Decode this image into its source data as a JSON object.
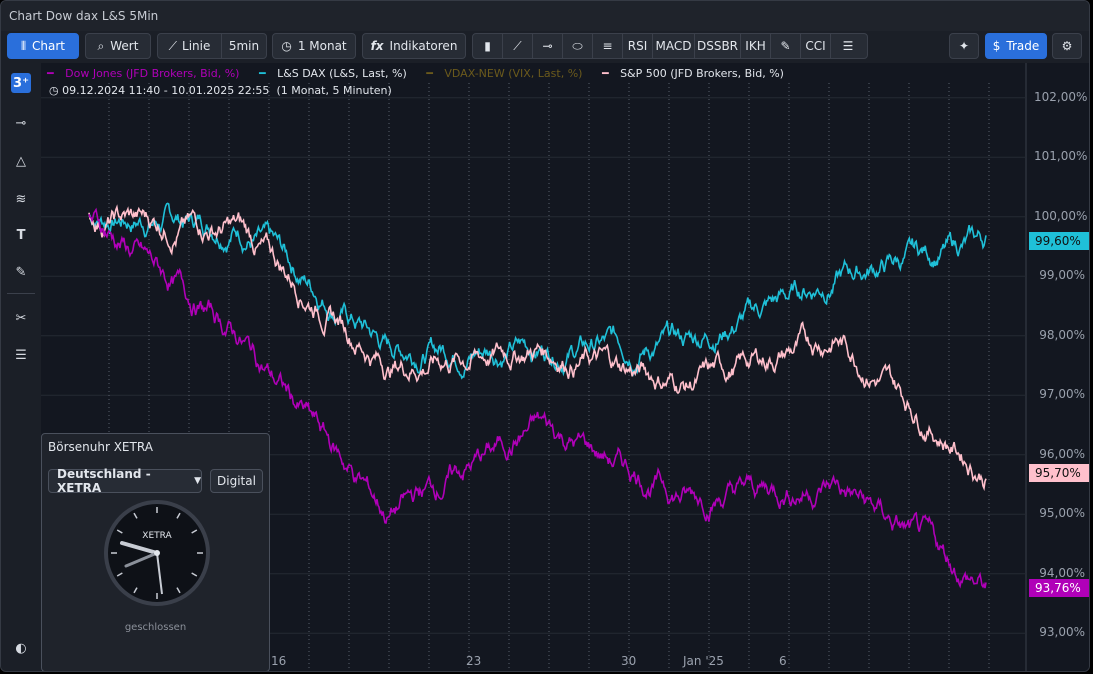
{
  "window": {
    "title": "Chart Dow dax L&S 5Min"
  },
  "toolbar": {
    "chart": "Chart",
    "wert": "Wert",
    "linie": "Linie",
    "interval": "5min",
    "period": "1 Monat",
    "indikatoren": "Indikatoren",
    "ind_rsi": "RSI",
    "ind_macd": "MACD",
    "ind_dssbr": "DSSBR",
    "ind_ikh": "IKH",
    "ind_cci": "CCI",
    "trade": "Trade"
  },
  "sidebar": {
    "badge": "3⁺"
  },
  "legend": [
    {
      "label": "Dow Jones (JFD Brokers, Bid, %)",
      "color": "#b000b8"
    },
    {
      "label": "L&S DAX (L&S, Last, %)",
      "color": "#1fc0d8"
    },
    {
      "label": "VDAX-NEW (VIX, Last, %)",
      "color": "#6b5a1c"
    },
    {
      "label": "S&P 500 (JFD Brokers, Bid, %)",
      "color": "#ffc0cc"
    }
  ],
  "range": {
    "dates": "09.12.2024 11:40 - 10.01.2025 22:55",
    "note": "(1 Monat, 5 Minuten)"
  },
  "axis": {
    "y": [
      "102,00%",
      "101,00%",
      "100,00%",
      "99,00%",
      "98,00%",
      "97,00%",
      "96,00%",
      "95,00%",
      "94,00%",
      "93,00%"
    ],
    "x": [
      "16",
      "23",
      "30",
      "Jan '25",
      "6"
    ]
  },
  "price_tags": [
    {
      "value": "99,60%",
      "color": "#1fc0d8"
    },
    {
      "value": "95,70%",
      "color": "#ffc0cc"
    },
    {
      "value": "93,76%",
      "color": "#b000b8"
    }
  ],
  "chart_data": {
    "type": "line",
    "x": [
      "09.12",
      "16.12",
      "23.12",
      "30.12",
      "Jan '25",
      "06.01",
      "10.01"
    ],
    "series": [
      {
        "name": "L&S DAX (L&S, Last, %)",
        "values": [
          100.0,
          99.9,
          97.8,
          97.8,
          97.9,
          99.0,
          99.6
        ]
      },
      {
        "name": "S&P 500 (JFD Brokers, Bid, %)",
        "values": [
          100.0,
          99.8,
          97.5,
          97.8,
          97.2,
          98.0,
          95.7
        ]
      },
      {
        "name": "Dow Jones (JFD Brokers, Bid, %)",
        "values": [
          100.0,
          98.0,
          95.0,
          96.5,
          95.3,
          95.5,
          93.76
        ]
      }
    ],
    "ylim": [
      92.5,
      102.5
    ]
  },
  "clock": {
    "title": "Börsenuhr XETRA",
    "exchange": "Deutschland - XETRA",
    "mode": "Digital",
    "face_label": "XETRA",
    "status": "geschlossen"
  }
}
